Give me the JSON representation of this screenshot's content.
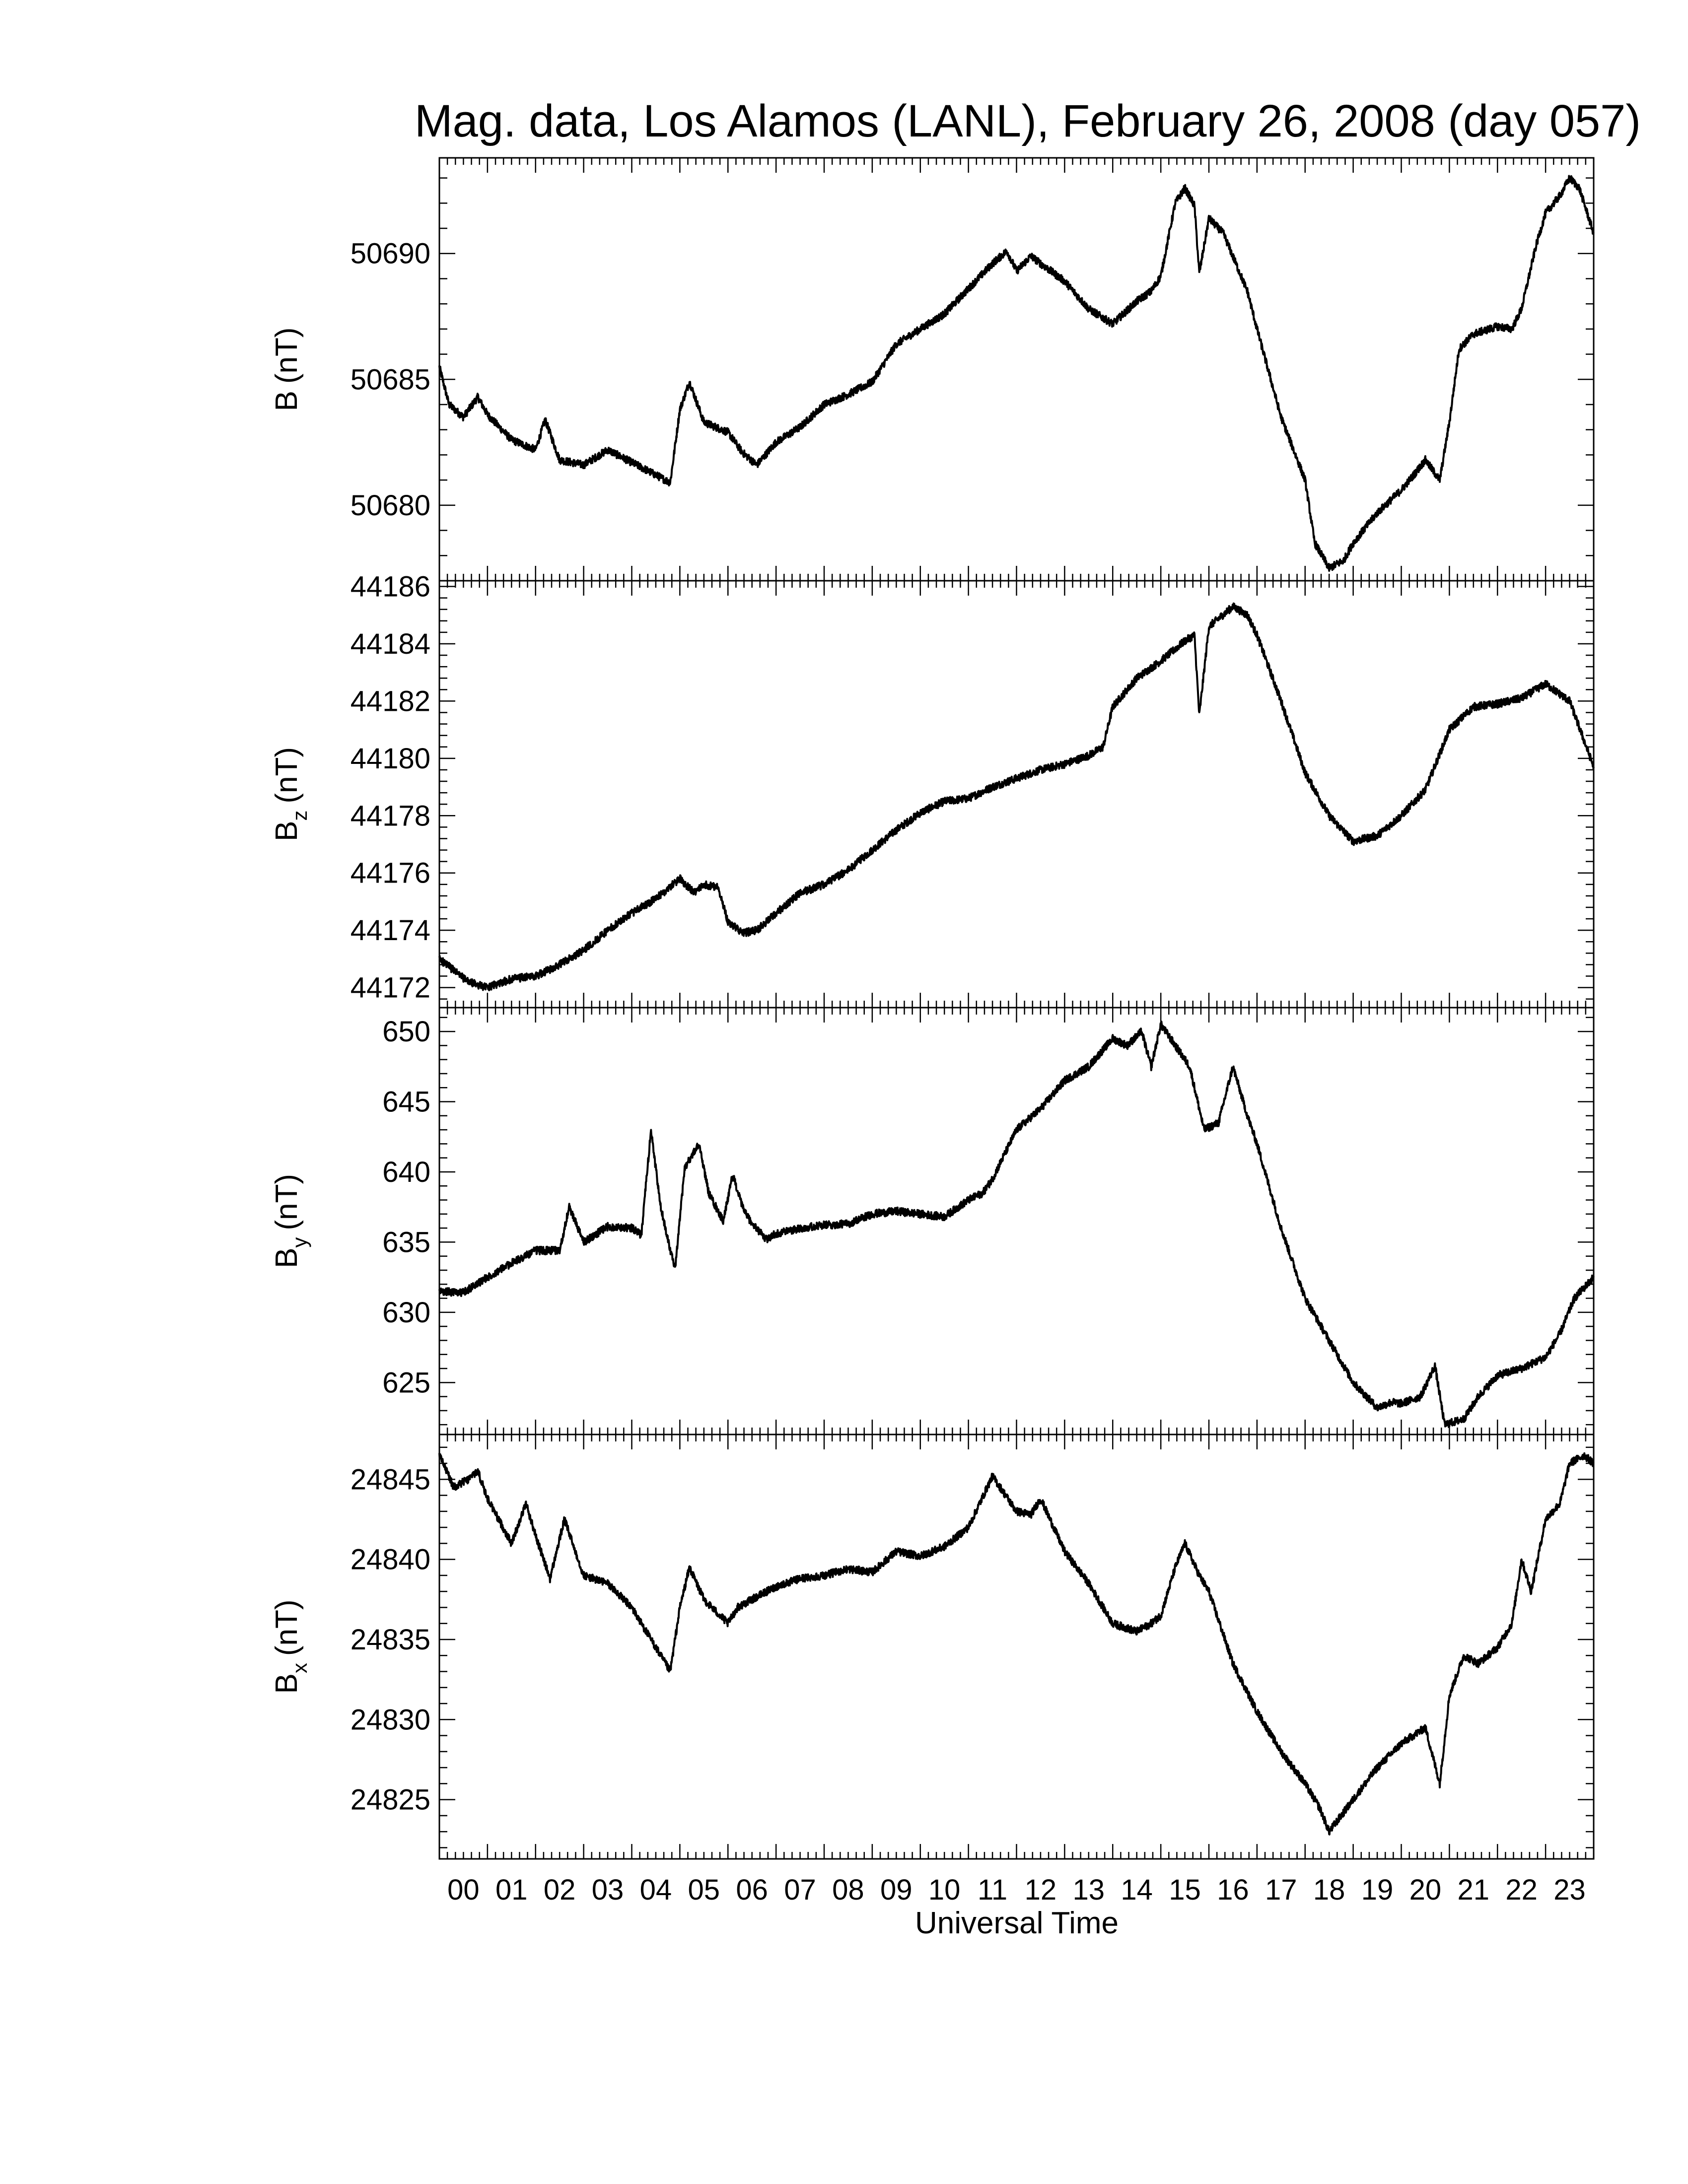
{
  "chart_data": {
    "type": "line",
    "title": "Mag. data, Los Alamos (LANL), February 26, 2008 (day 057)",
    "xlabel": "Universal Time",
    "x_tick_labels": [
      "00",
      "01",
      "02",
      "03",
      "04",
      "05",
      "06",
      "07",
      "08",
      "09",
      "10",
      "11",
      "12",
      "13",
      "14",
      "15",
      "16",
      "17",
      "18",
      "19",
      "20",
      "21",
      "22",
      "23"
    ],
    "xlim": [
      0,
      24
    ],
    "grid": false,
    "legend": "none",
    "panels": [
      {
        "ylabel_main": "B",
        "ylabel_sub": "",
        "ylabel_unit": "(nT)",
        "ylim": [
          50677.0,
          50693.8
        ],
        "yticks": [
          50680,
          50685,
          50690
        ],
        "ytick_labels": [
          "50680",
          "50685",
          "50690"
        ],
        "series": [
          {
            "x": [
              0.0,
              0.2,
              0.5,
              0.8,
              1.0,
              1.5,
              2.0,
              2.2,
              2.5,
              3.0,
              3.5,
              4.0,
              4.5,
              4.8,
              5.0,
              5.2,
              5.5,
              6.0,
              6.3,
              6.6,
              7.0,
              7.5,
              8.0,
              8.5,
              9.0,
              9.5,
              10.0,
              10.5,
              11.0,
              11.5,
              11.8,
              12.0,
              12.3,
              12.5,
              13.0,
              13.5,
              14.0,
              14.5,
              14.8,
              15.0,
              15.3,
              15.5,
              15.7,
              15.8,
              16.0,
              16.3,
              16.8,
              17.0,
              17.5,
              18.0,
              18.2,
              18.5,
              18.8,
              19.0,
              19.5,
              20.0,
              20.3,
              20.5,
              20.8,
              21.0,
              21.2,
              21.5,
              22.0,
              22.3,
              22.5,
              22.8,
              23.0,
              23.3,
              23.5,
              23.7,
              24.0
            ],
            "y": [
              50685.5,
              50684.0,
              50683.5,
              50684.3,
              50683.6,
              50682.6,
              50682.2,
              50683.4,
              50681.8,
              50681.6,
              50682.2,
              50681.7,
              50681.2,
              50680.9,
              50683.8,
              50684.9,
              50683.3,
              50682.9,
              50682.1,
              50681.6,
              50682.5,
              50683.1,
              50684.0,
              50684.4,
              50684.9,
              50686.4,
              50687.0,
              50687.6,
              50688.6,
              50689.6,
              50690.1,
              50689.3,
              50689.9,
              50689.6,
              50688.9,
              50687.8,
              50687.2,
              50688.1,
              50688.5,
              50689.1,
              50692.0,
              50692.6,
              50691.9,
              50689.2,
              50691.4,
              50690.8,
              50688.5,
              50687.0,
              50683.5,
              50681.0,
              50678.5,
              50677.5,
              50677.8,
              50678.5,
              50679.7,
              50680.6,
              50681.3,
              50681.8,
              50681.0,
              50683.3,
              50686.2,
              50686.8,
              50687.1,
              50687.0,
              50687.8,
              50690.3,
              50691.6,
              50692.3,
              50693.0,
              50692.6,
              50690.8
            ]
          }
        ]
      },
      {
        "ylabel_main": "B",
        "ylabel_sub": "z",
        "ylabel_unit": "(nT)",
        "ylim": [
          44171.3,
          44186.2
        ],
        "yticks": [
          44172,
          44174,
          44176,
          44178,
          44180,
          44182,
          44184,
          44186
        ],
        "ytick_labels": [
          "44172",
          "44174",
          "44176",
          "44178",
          "44180",
          "44182",
          "44184",
          "44186"
        ],
        "series": [
          {
            "x": [
              0.0,
              0.3,
              0.6,
              1.0,
              1.5,
              2.0,
              2.5,
              3.0,
              3.5,
              4.0,
              4.5,
              5.0,
              5.3,
              5.5,
              5.8,
              6.0,
              6.3,
              6.6,
              7.0,
              7.5,
              8.0,
              8.5,
              9.0,
              9.5,
              10.0,
              10.5,
              11.0,
              11.5,
              12.0,
              12.5,
              13.0,
              13.5,
              13.8,
              14.0,
              14.5,
              15.0,
              15.5,
              15.7,
              15.8,
              16.0,
              16.5,
              16.8,
              17.0,
              17.5,
              18.0,
              18.5,
              19.0,
              19.5,
              20.0,
              20.5,
              21.0,
              21.5,
              22.0,
              22.5,
              23.0,
              23.5,
              24.0
            ],
            "y": [
              44173.0,
              44172.6,
              44172.2,
              44172.0,
              44172.3,
              44172.4,
              44172.8,
              44173.3,
              44174.0,
              44174.6,
              44175.1,
              44175.8,
              44175.3,
              44175.6,
              44175.5,
              44174.3,
              44173.9,
              44174.0,
              44174.6,
              44175.3,
              44175.6,
              44176.1,
              44176.8,
              44177.5,
              44178.1,
              44178.5,
              44178.6,
              44179.0,
              44179.3,
              44179.6,
              44179.8,
              44180.1,
              44180.4,
              44181.8,
              44182.8,
              44183.4,
              44184.1,
              44184.3,
              44181.5,
              44184.6,
              44185.3,
              44185.0,
              44184.3,
              44182.0,
              44179.5,
              44178.0,
              44177.1,
              44177.3,
              44178.0,
              44178.9,
              44181.0,
              44181.8,
              44181.9,
              44182.1,
              44182.6,
              44182.0,
              44179.7
            ]
          }
        ]
      },
      {
        "ylabel_main": "B",
        "ylabel_sub": "y",
        "ylabel_unit": "(nT)",
        "ylim": [
          621.3,
          651.7
        ],
        "yticks": [
          625,
          630,
          635,
          640,
          645,
          650
        ],
        "ytick_labels": [
          "625",
          "630",
          "635",
          "640",
          "645",
          "650"
        ],
        "series": [
          {
            "x": [
              0.0,
              0.5,
              1.0,
              1.5,
              2.0,
              2.5,
              2.7,
              3.0,
              3.5,
              4.0,
              4.2,
              4.4,
              4.6,
              4.9,
              5.1,
              5.4,
              5.6,
              5.9,
              6.1,
              6.3,
              6.5,
              6.8,
              7.0,
              7.5,
              8.0,
              8.5,
              9.0,
              9.5,
              10.0,
              10.5,
              11.0,
              11.3,
              11.5,
              12.0,
              12.5,
              13.0,
              13.5,
              14.0,
              14.3,
              14.6,
              14.8,
              15.0,
              15.3,
              15.6,
              15.9,
              16.2,
              16.5,
              16.8,
              17.0,
              17.5,
              18.0,
              18.5,
              19.0,
              19.5,
              19.8,
              20.0,
              20.4,
              20.7,
              20.9,
              21.3,
              21.6,
              22.0,
              22.5,
              23.0,
              23.3,
              23.6,
              24.0
            ],
            "y": [
              631.5,
              631.4,
              632.5,
              633.5,
              634.4,
              634.4,
              637.5,
              635.0,
              636.1,
              636.0,
              635.5,
              643.0,
              637.5,
              633.0,
              640.3,
              642.0,
              638.5,
              636.5,
              639.8,
              637.5,
              636.3,
              635.2,
              635.6,
              636.0,
              636.2,
              636.3,
              637.0,
              637.2,
              637.0,
              636.8,
              638.0,
              638.5,
              639.5,
              643.0,
              644.5,
              646.5,
              647.5,
              649.5,
              649.0,
              650.0,
              647.5,
              650.5,
              649.0,
              647.5,
              643.0,
              643.5,
              647.5,
              644.0,
              642.0,
              636.0,
              631.0,
              628.0,
              625.0,
              623.2,
              623.6,
              623.5,
              624.0,
              626.2,
              622.0,
              622.4,
              624.0,
              625.5,
              626.0,
              626.8,
              628.5,
              631.0,
              632.5
            ]
          }
        ]
      },
      {
        "ylabel_main": "B",
        "ylabel_sub": "x",
        "ylabel_unit": "(nT)",
        "ylim": [
          24821.3,
          24847.8
        ],
        "yticks": [
          24825,
          24830,
          24835,
          24840,
          24845
        ],
        "ytick_labels": [
          "24825",
          "24830",
          "24835",
          "24840",
          "24845"
        ],
        "series": [
          {
            "x": [
              0.0,
              0.3,
              0.6,
              0.8,
              1.0,
              1.5,
              1.8,
              2.0,
              2.3,
              2.6,
              3.0,
              3.5,
              4.0,
              4.5,
              4.8,
              5.0,
              5.2,
              5.5,
              6.0,
              6.2,
              6.5,
              7.0,
              7.5,
              8.0,
              8.5,
              9.0,
              9.5,
              10.0,
              10.5,
              11.0,
              11.5,
              12.0,
              12.3,
              12.5,
              13.0,
              13.5,
              14.0,
              14.5,
              14.8,
              15.0,
              15.3,
              15.5,
              15.8,
              16.0,
              16.5,
              17.0,
              17.5,
              18.0,
              18.3,
              18.5,
              19.0,
              19.5,
              20.0,
              20.5,
              20.8,
              21.0,
              21.3,
              21.6,
              22.0,
              22.3,
              22.5,
              22.7,
              23.0,
              23.3,
              23.5,
              23.8,
              24.0
            ],
            "y": [
              24846.5,
              24844.5,
              24845.0,
              24845.5,
              24843.8,
              24841.0,
              24843.5,
              24841.5,
              24838.8,
              24842.5,
              24839.0,
              24838.5,
              24837.0,
              24834.5,
              24833.0,
              24837.0,
              24839.5,
              24837.5,
              24836.0,
              24837.0,
              24837.5,
              24838.3,
              24838.8,
              24839.0,
              24839.4,
              24839.2,
              24840.5,
              24840.2,
              24840.8,
              24842.0,
              24845.2,
              24843.0,
              24842.8,
              24843.8,
              24840.5,
              24838.5,
              24836.0,
              24835.5,
              24836.0,
              24836.5,
              24839.5,
              24841.0,
              24839.0,
              24838.0,
              24833.5,
              24830.5,
              24828.0,
              24826.0,
              24824.5,
              24823.0,
              24825.0,
              24827.0,
              24828.5,
              24829.5,
              24826.0,
              24831.5,
              24834.0,
              24833.5,
              24834.5,
              24836.0,
              24840.0,
              24838.0,
              24842.5,
              24843.5,
              24846.0,
              24846.5,
              24846.0
            ]
          }
        ]
      }
    ]
  }
}
